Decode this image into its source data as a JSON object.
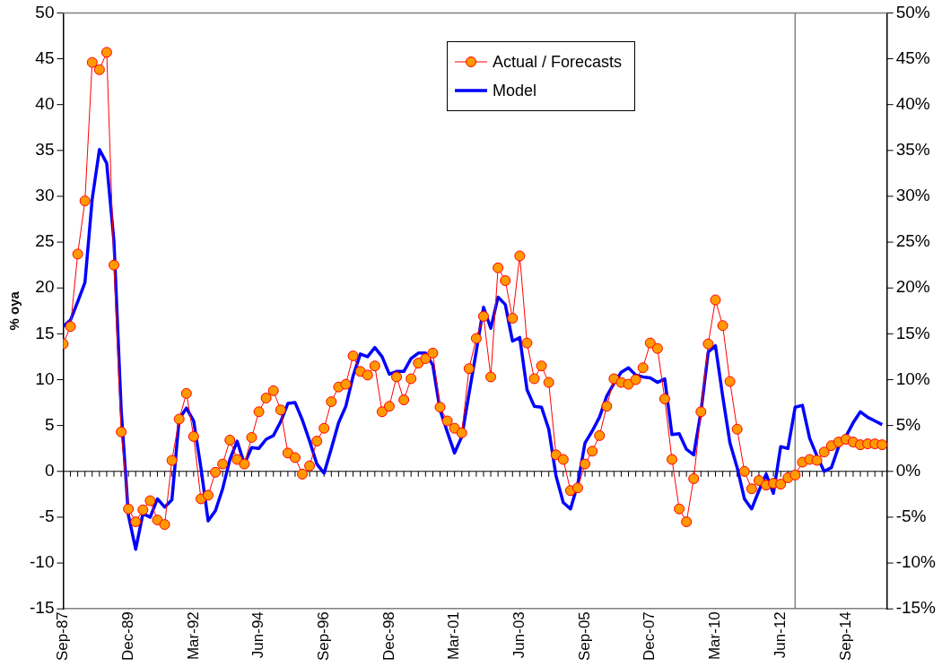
{
  "chart_data": {
    "type": "line",
    "ylabel": "% oya",
    "x": [
      "1987-09",
      "1987-12",
      "1988-03",
      "1988-06",
      "1988-09",
      "1988-12",
      "1989-03",
      "1989-06",
      "1989-09",
      "1989-12",
      "1990-03",
      "1990-06",
      "1990-09",
      "1990-12",
      "1991-03",
      "1991-06",
      "1991-09",
      "1991-12",
      "1992-03",
      "1992-06",
      "1992-09",
      "1992-12",
      "1993-03",
      "1993-06",
      "1993-09",
      "1993-12",
      "1994-03",
      "1994-06",
      "1994-09",
      "1994-12",
      "1995-03",
      "1995-06",
      "1995-09",
      "1995-12",
      "1996-03",
      "1996-06",
      "1996-09",
      "1996-12",
      "1997-03",
      "1997-06",
      "1997-09",
      "1997-12",
      "1998-03",
      "1998-06",
      "1998-09",
      "1998-12",
      "1999-03",
      "1999-06",
      "1999-09",
      "1999-12",
      "2000-03",
      "2000-06",
      "2000-09",
      "2000-12",
      "2001-03",
      "2001-06",
      "2001-09",
      "2001-12",
      "2002-03",
      "2002-06",
      "2002-09",
      "2002-12",
      "2003-03",
      "2003-06",
      "2003-09",
      "2003-12",
      "2004-03",
      "2004-06",
      "2004-09",
      "2004-12",
      "2005-03",
      "2005-06",
      "2005-09",
      "2005-12",
      "2006-03",
      "2006-06",
      "2006-09",
      "2006-12",
      "2007-03",
      "2007-06",
      "2007-09",
      "2007-12",
      "2008-03",
      "2008-06",
      "2008-09",
      "2008-12",
      "2009-03",
      "2009-06",
      "2009-09",
      "2009-12",
      "2010-03",
      "2010-06",
      "2010-09",
      "2010-12",
      "2011-03",
      "2011-06",
      "2011-09",
      "2011-12",
      "2012-03",
      "2012-06",
      "2012-09",
      "2012-12",
      "2013-03",
      "2013-06",
      "2013-09",
      "2013-12",
      "2014-03",
      "2014-06",
      "2014-09",
      "2014-12",
      "2015-03",
      "2015-06",
      "2015-09",
      "2015-12"
    ],
    "series": [
      {
        "name": "Actual / Forecasts",
        "color": "#ff0000",
        "marker": "circle",
        "values": [
          13.9,
          15.8,
          23.7,
          29.5,
          44.6,
          43.8,
          45.7,
          22.5,
          4.3,
          -4.1,
          -5.5,
          -4.2,
          -3.2,
          -5.3,
          -5.8,
          1.2,
          5.7,
          8.5,
          3.8,
          -3.0,
          -2.6,
          -0.1,
          0.8,
          3.4,
          1.3,
          0.8,
          3.7,
          6.5,
          8.0,
          8.8,
          6.7,
          2.0,
          1.5,
          -0.3,
          0.6,
          3.3,
          4.7,
          7.6,
          9.2,
          9.5,
          12.6,
          10.9,
          10.5,
          11.5,
          6.5,
          7.1,
          10.3,
          7.8,
          10.1,
          11.8,
          12.3,
          12.9,
          7.0,
          5.5,
          4.7,
          4.2,
          11.2,
          14.5,
          16.9,
          10.3,
          22.2,
          20.8,
          16.7,
          23.5,
          14.0,
          10.1,
          11.5,
          9.7,
          1.8,
          1.3,
          -2.1,
          -1.8,
          0.8,
          2.2,
          3.9,
          7.1,
          10.1,
          9.7,
          9.5,
          10.0,
          11.3,
          14.0,
          13.4,
          7.9,
          1.3,
          -4.1,
          -5.5,
          -0.8,
          6.5,
          13.9,
          18.7,
          15.9,
          9.8,
          4.6,
          0.0,
          -1.9,
          -1.0,
          -1.5,
          -1.3,
          -1.4,
          -0.7,
          -0.4,
          1.0,
          1.3,
          1.2,
          2.1,
          2.8,
          3.2,
          3.5,
          3.2,
          2.9,
          3.0,
          3.0,
          2.9
        ]
      },
      {
        "name": "Model",
        "color": "#0000ff",
        "marker": "none",
        "values": [
          15.8,
          16.5,
          18.5,
          20.6,
          29.7,
          35.1,
          33.6,
          25.1,
          6.7,
          -4.8,
          -8.5,
          -4.6,
          -5.0,
          -3.0,
          -3.9,
          -3.1,
          5.7,
          6.9,
          5.5,
          0.4,
          -5.4,
          -4.3,
          -1.9,
          1.3,
          3.3,
          0.8,
          2.6,
          2.5,
          3.5,
          3.9,
          5.4,
          7.4,
          7.5,
          5.6,
          3.3,
          0.8,
          -0.2,
          2.5,
          5.3,
          7.1,
          10.4,
          12.8,
          12.5,
          13.5,
          12.5,
          10.6,
          10.9,
          10.9,
          12.3,
          12.9,
          12.9,
          11.6,
          6.7,
          4.3,
          2.0,
          3.8,
          8.5,
          13.1,
          17.9,
          15.6,
          19.0,
          18.2,
          14.2,
          14.6,
          8.9,
          7.1,
          7.0,
          4.6,
          -0.5,
          -3.4,
          -4.1,
          -1.4,
          3.1,
          4.4,
          5.9,
          8.2,
          9.6,
          10.8,
          11.3,
          10.5,
          10.3,
          10.2,
          9.7,
          10.1,
          4.0,
          4.1,
          2.4,
          1.8,
          6.5,
          13.0,
          13.7,
          8.2,
          3.1,
          0.4,
          -3.0,
          -4.1,
          -2.1,
          -0.3,
          -2.4,
          2.7,
          2.5,
          7.0,
          7.2,
          3.6,
          1.7,
          0.0,
          0.4,
          2.7,
          3.8,
          5.3,
          6.5,
          5.9,
          5.5,
          5.1
        ]
      }
    ],
    "xlim": [
      "1987-09",
      "2016-02"
    ],
    "xticks": [
      {
        "value": "1987-09",
        "label": "Sep-87"
      },
      {
        "value": "1989-12",
        "label": "Dec-89"
      },
      {
        "value": "1992-03",
        "label": "Mar-92"
      },
      {
        "value": "1994-06",
        "label": "Jun-94"
      },
      {
        "value": "1996-09",
        "label": "Sep-96"
      },
      {
        "value": "1998-12",
        "label": "Dec-98"
      },
      {
        "value": "2001-03",
        "label": "Mar-01"
      },
      {
        "value": "2003-06",
        "label": "Jun-03"
      },
      {
        "value": "2005-09",
        "label": "Sep-05"
      },
      {
        "value": "2007-12",
        "label": "Dec-07"
      },
      {
        "value": "2010-03",
        "label": "Mar-10"
      },
      {
        "value": "2012-06",
        "label": "Jun-12"
      },
      {
        "value": "2014-09",
        "label": "Sep-14"
      }
    ],
    "ylim": [
      -15,
      50
    ],
    "yticks": [
      -15,
      -10,
      -5,
      0,
      5,
      10,
      15,
      20,
      25,
      30,
      35,
      40,
      45,
      50
    ],
    "y2lim": [
      -15,
      50
    ],
    "y2ticks": [
      {
        "value": -15,
        "label": "-15%"
      },
      {
        "value": -10,
        "label": "-10%"
      },
      {
        "value": -5,
        "label": "-5%"
      },
      {
        "value": 0,
        "label": "0%"
      },
      {
        "value": 5,
        "label": "5%"
      },
      {
        "value": 10,
        "label": "10%"
      },
      {
        "value": 15,
        "label": "15%"
      },
      {
        "value": 20,
        "label": "20%"
      },
      {
        "value": 25,
        "label": "25%"
      },
      {
        "value": 30,
        "label": "30%"
      },
      {
        "value": 35,
        "label": "35%"
      },
      {
        "value": 40,
        "label": "40%"
      },
      {
        "value": 45,
        "label": "45%"
      },
      {
        "value": 50,
        "label": "50%"
      }
    ],
    "ref_lines": [
      {
        "axis": "x",
        "value": "2012-12",
        "color": "#808080"
      },
      {
        "axis": "y",
        "value": 0,
        "color": "#000000"
      }
    ],
    "grid": false,
    "legend": "top"
  }
}
